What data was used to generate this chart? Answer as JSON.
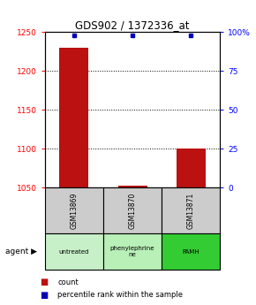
{
  "title": "GDS902 / 1372336_at",
  "samples": [
    "GSM13869",
    "GSM13870",
    "GSM13871"
  ],
  "agent_labels": [
    "untreated",
    "phenylephrine\nne",
    "PAMH"
  ],
  "agent_colors": [
    "#c8f0c8",
    "#b8f0b8",
    "#33cc33"
  ],
  "bar_values": [
    1230,
    1053,
    1100
  ],
  "bar_baseline": 1050,
  "blue_dot_values": [
    98,
    98,
    98
  ],
  "ylim_left": [
    1050,
    1250
  ],
  "ylim_right": [
    0,
    100
  ],
  "yticks_left": [
    1050,
    1100,
    1150,
    1200,
    1250
  ],
  "yticks_right": [
    0,
    25,
    50,
    75,
    100
  ],
  "ytick_labels_right": [
    "0",
    "25",
    "50",
    "75",
    "100%"
  ],
  "bar_color": "#bb1111",
  "dot_color": "#0000bb",
  "bar_width": 0.5,
  "sample_box_color": "#cccccc",
  "legend_red_label": "count",
  "legend_blue_label": "percentile rank within the sample",
  "agent_text": "agent"
}
